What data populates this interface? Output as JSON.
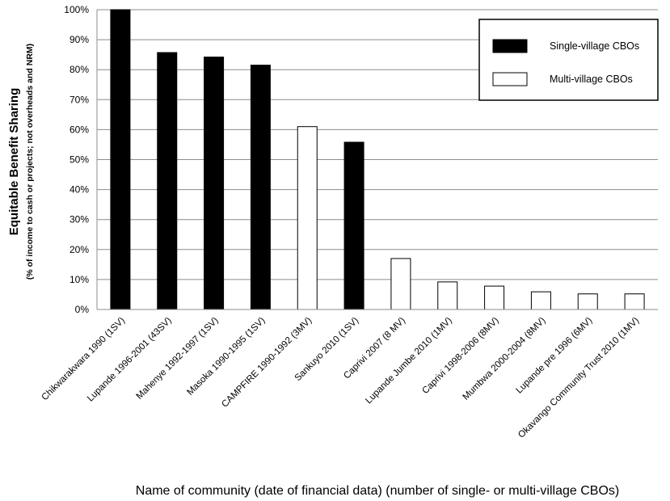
{
  "chart_data": {
    "type": "bar",
    "title": "",
    "ylabel": "Equitable Benefit Sharing",
    "ylabel_sub": "(% of income to cash or projects; not overheads and NRM)",
    "xlabel": "Name of community (date of financial data) (number of single- or multi-village CBOs)",
    "ylim": [
      0,
      100
    ],
    "yticks": [
      "0%",
      "10%",
      "20%",
      "30%",
      "40%",
      "50%",
      "60%",
      "70%",
      "80%",
      "90%",
      "100%"
    ],
    "grid": true,
    "legend_position": "top-right",
    "legend": [
      {
        "name": "Single-village CBOs",
        "color": "#000000"
      },
      {
        "name": "Multi-village CBOs",
        "color": "#ffffff"
      }
    ],
    "categories": [
      "Chikwarakwara 1990 (1SV)",
      "Lupande 1996-2001 (43SV)",
      "Mahenye 1992-1997 (1SV)",
      "Masoka 1990-1995 (1SV)",
      "CAMPFIRE 1990-1992 (3MV)",
      "Sankuyo 2010 (1SV)",
      "Caprivi 2007 (8 MV)",
      "Lupande Jumbe 2010 (1MV)",
      "Caprivi 1998-2006 (8MV)",
      "Mumbwa 2000-2004 (8MV)",
      "Lupande pre 1996 (6MV)",
      "Okavango Community Trust 2010 (1MV)"
    ],
    "values": [
      100,
      85.7,
      84.2,
      81.5,
      61,
      55.8,
      17,
      9.2,
      7.8,
      5.9,
      5.2,
      5.2
    ],
    "bar_type": [
      "single",
      "single",
      "single",
      "single",
      "multi",
      "single",
      "multi",
      "multi",
      "multi",
      "multi",
      "multi",
      "multi"
    ]
  }
}
